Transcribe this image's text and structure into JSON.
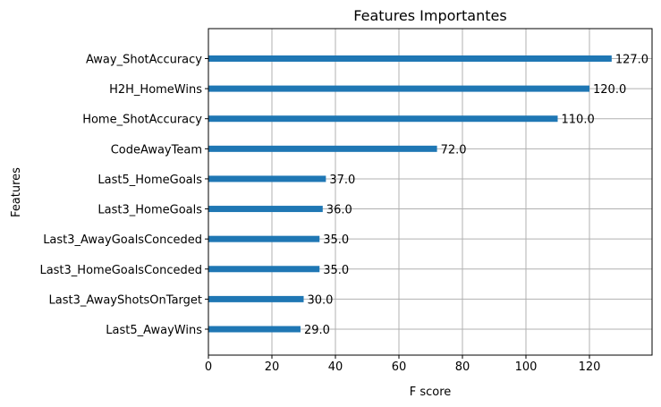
{
  "chart_data": {
    "type": "bar",
    "orientation": "horizontal",
    "title": "Features Importantes",
    "xlabel": "F score",
    "ylabel": "Features",
    "categories": [
      "Away_ShotAccuracy",
      "H2H_HomeWins",
      "Home_ShotAccuracy",
      "CodeAwayTeam",
      "Last5_HomeGoals",
      "Last3_HomeGoals",
      "Last3_AwayGoalsConceded",
      "Last3_HomeGoalsConceded",
      "Last3_AwayShotsOnTarget",
      "Last5_AwayWins"
    ],
    "values": [
      127,
      120,
      110,
      72,
      37,
      36,
      35,
      35,
      30,
      29
    ],
    "value_labels": [
      "127.0",
      "120.0",
      "110.0",
      "72.0",
      "37.0",
      "36.0",
      "35.0",
      "35.0",
      "30.0",
      "29.0"
    ],
    "xlim": [
      0,
      139.7
    ],
    "xticks": [
      0,
      20,
      40,
      60,
      80,
      100,
      120
    ],
    "grid": true,
    "bar_color": "#1f77b4"
  }
}
